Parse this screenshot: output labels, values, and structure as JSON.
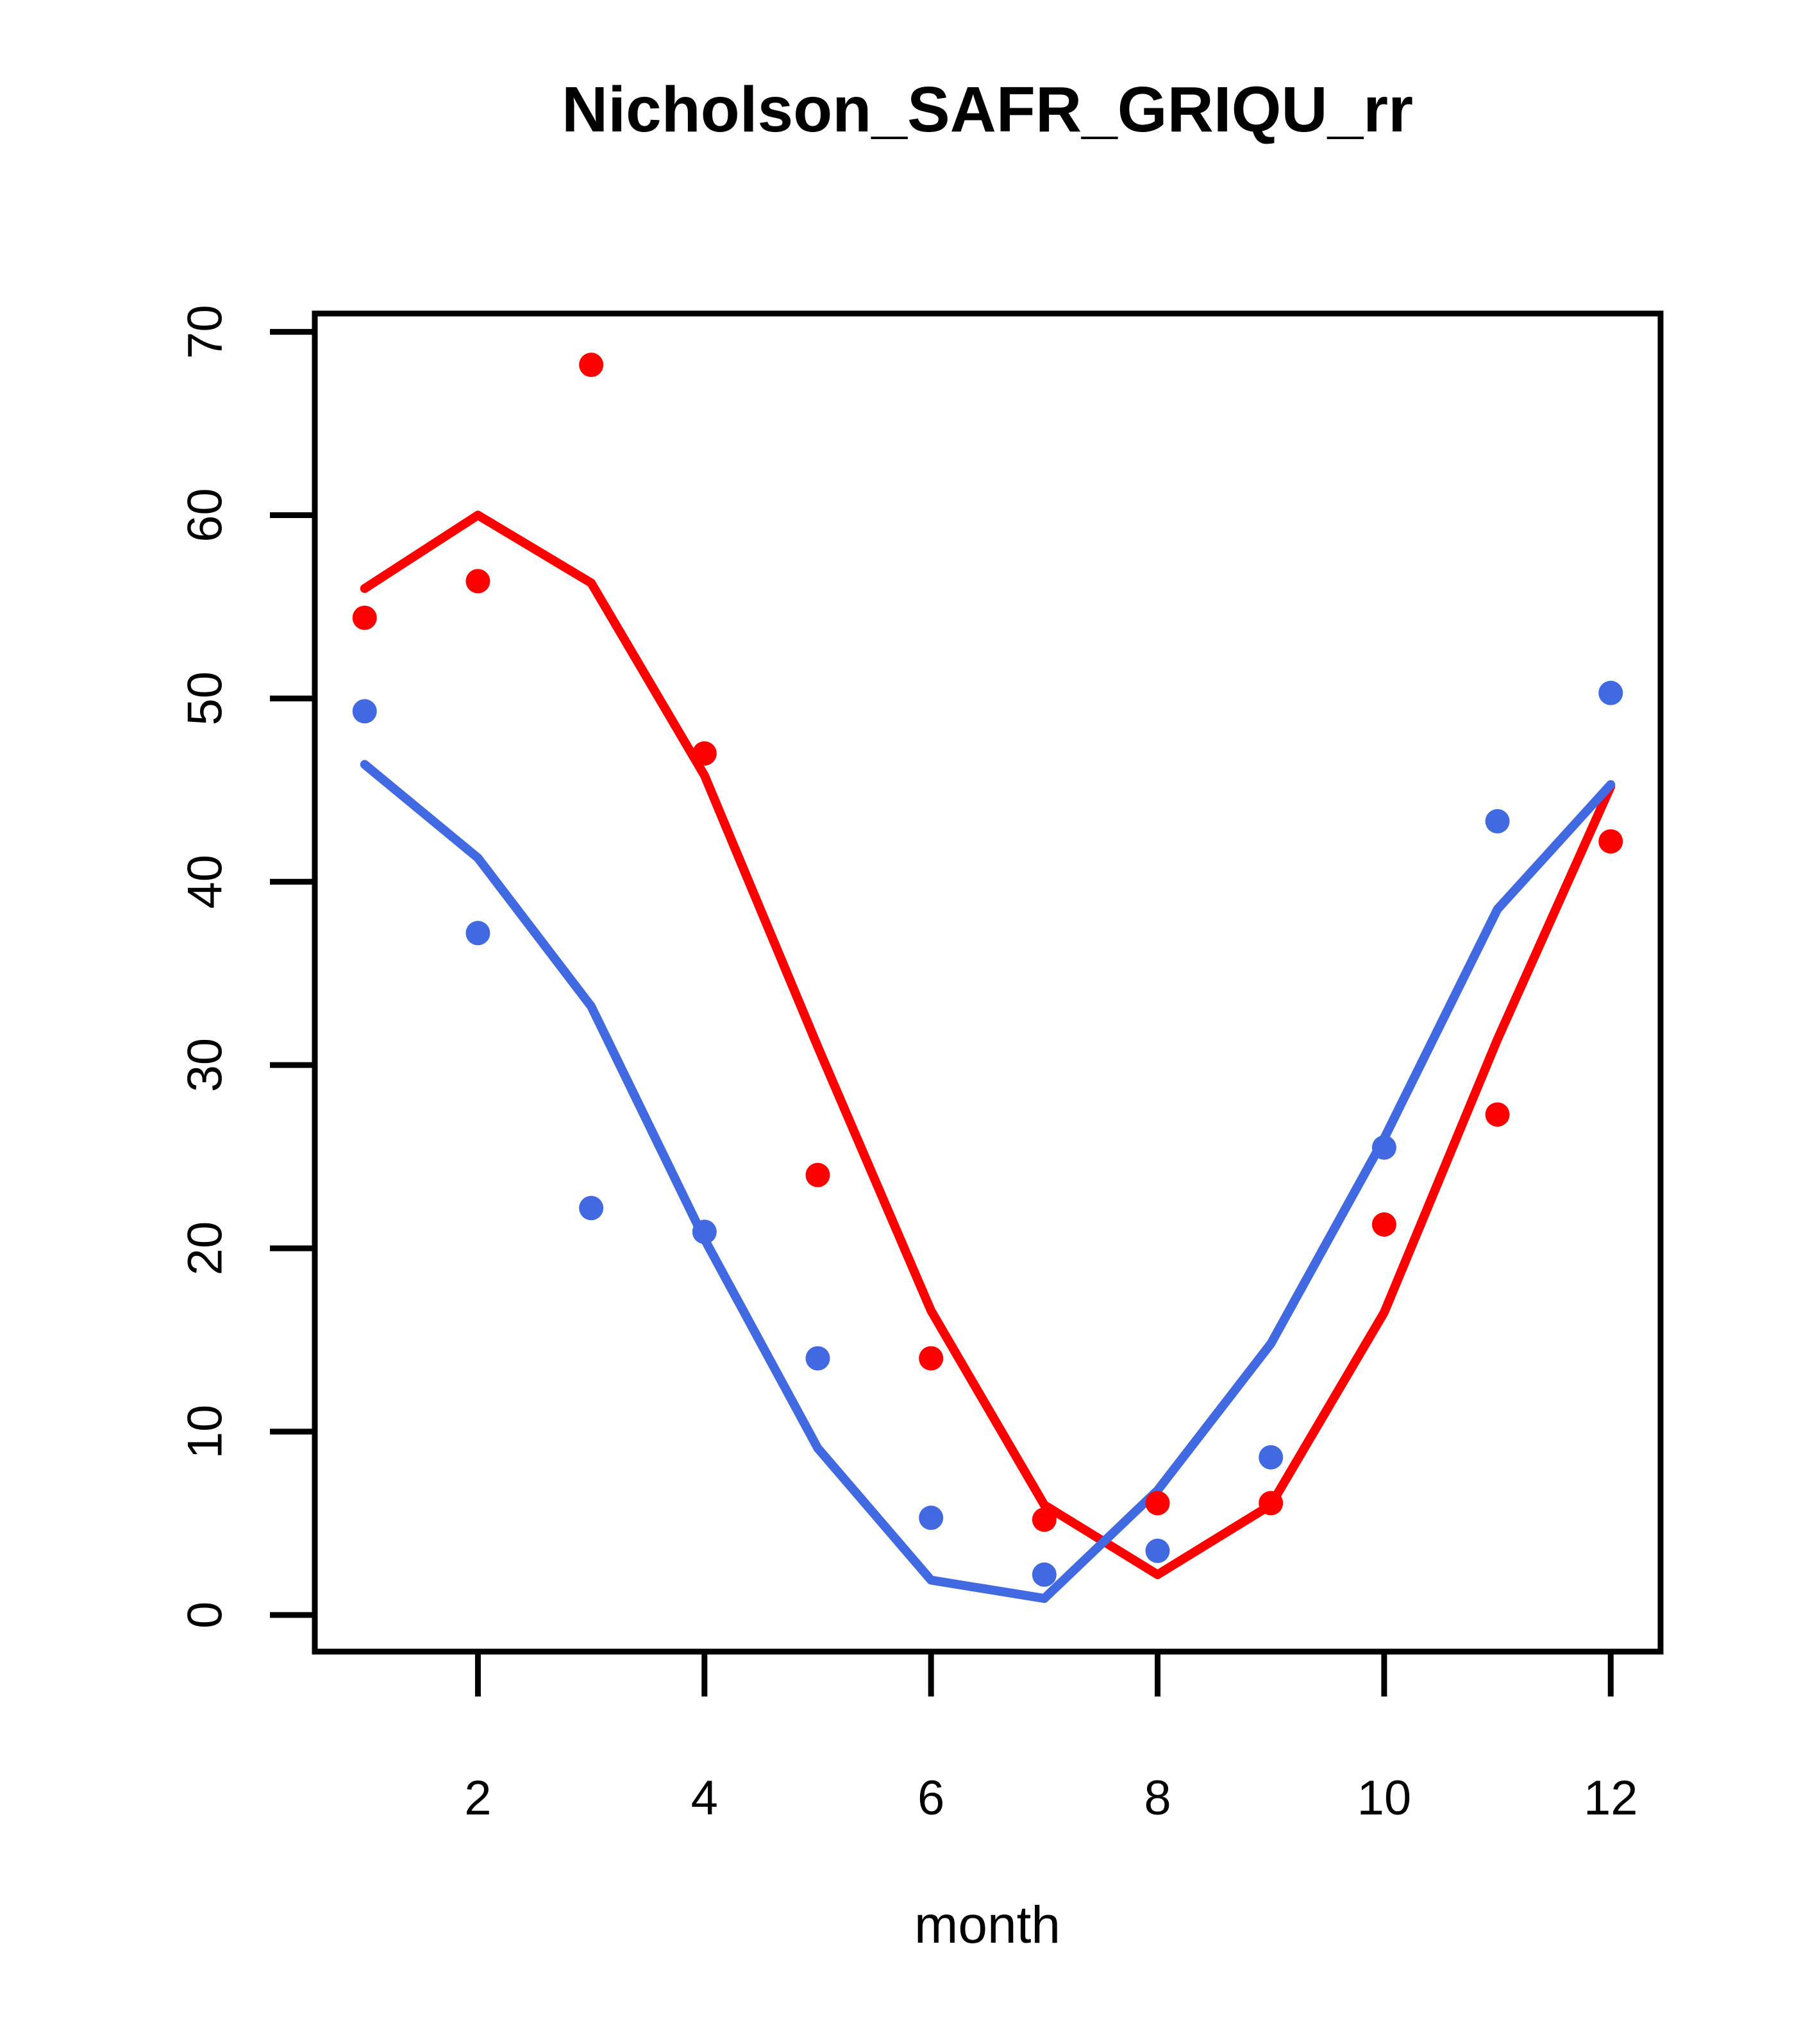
{
  "title": "Nicholson_SAFR_GRIQU_rr",
  "xlabel": "month",
  "colors": {
    "red_series": "#FF0000",
    "blue_series": "#4169E1",
    "axis": "#000000",
    "background": "#FFFFFF"
  },
  "chart_data": {
    "type": "scatter",
    "x": [
      1,
      2,
      3,
      4,
      5,
      6,
      7,
      8,
      9,
      10,
      11,
      12
    ],
    "x_ticks": [
      2,
      4,
      6,
      8,
      10,
      12
    ],
    "y_ticks": [
      0,
      10,
      20,
      30,
      40,
      50,
      60,
      70
    ],
    "xlim": [
      0.56,
      12.44
    ],
    "ylim": [
      -2.0,
      71.0
    ],
    "grid": "off",
    "legend": "none",
    "title": "Nicholson_SAFR_GRIQU_rr",
    "xlabel": "month",
    "ylabel": "",
    "series": [
      {
        "name": "red-observed-points",
        "kind": "points",
        "color_key": "red_series",
        "values": [
          54.4,
          56.4,
          68.2,
          47.0,
          24.0,
          14.0,
          5.2,
          6.1,
          6.1,
          21.3,
          27.3,
          42.2
        ]
      },
      {
        "name": "red-fitted-line",
        "kind": "line",
        "color_key": "red_series",
        "values": [
          56.0,
          60.0,
          56.3,
          45.8,
          31.0,
          16.6,
          6.0,
          2.2,
          6.0,
          16.5,
          31.4,
          45.2
        ]
      },
      {
        "name": "blue-observed-points",
        "kind": "points",
        "color_key": "blue_series",
        "values": [
          49.3,
          37.2,
          22.2,
          20.9,
          14.0,
          5.3,
          2.2,
          3.5,
          8.6,
          25.5,
          43.3,
          50.3
        ]
      },
      {
        "name": "blue-fitted-line",
        "kind": "line",
        "color_key": "blue_series",
        "values": [
          46.4,
          41.3,
          33.2,
          20.5,
          9.1,
          1.9,
          0.9,
          6.8,
          14.8,
          26.0,
          38.5,
          45.3
        ]
      }
    ]
  }
}
